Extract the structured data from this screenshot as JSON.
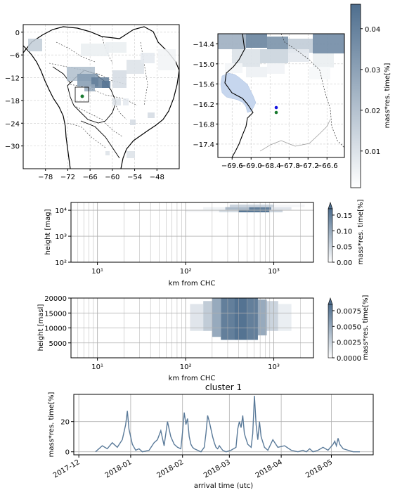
{
  "colors": {
    "primary": "#5a7a99",
    "grid": "#b0b0b0",
    "land_blue": "#c6d6ee",
    "dot_blue": "#1515e0",
    "dot_green": "#1a7a30"
  },
  "chart_data": [
    {
      "id": "map_overview",
      "type": "heatmap",
      "xticks": [
        "−78",
        "−72",
        "−66",
        "−60",
        "−54",
        "−48"
      ],
      "yticks": [
        "0",
        "−6",
        "−12",
        "−18",
        "−24",
        "−30"
      ],
      "xlim": [
        -84,
        -42
      ],
      "ylim": [
        -36,
        2
      ],
      "grid": true,
      "markers": [
        {
          "lon": -68.13,
          "lat": -16.35,
          "color": "green"
        }
      ]
    },
    {
      "id": "map_zoom",
      "type": "heatmap",
      "xticks": [
        "−69.6",
        "−69.0",
        "−68.4",
        "−67.8",
        "−67.2",
        "−66.6"
      ],
      "yticks": [
        "−14.4",
        "−15.0",
        "−15.6",
        "−16.2",
        "−16.8",
        "−17.4"
      ],
      "xlim": [
        -70.05,
        -66.05
      ],
      "ylim": [
        -17.8,
        -14.1
      ],
      "grid": true,
      "markers": [
        {
          "lon": -68.05,
          "lat": -16.3,
          "color": "blue"
        },
        {
          "lon": -68.05,
          "lat": -16.5,
          "color": "green"
        }
      ],
      "colorbar": {
        "label": "mass*res. time[%]",
        "ticks": [
          "0.01",
          "0.02",
          "0.03",
          "0.04"
        ],
        "range": [
          0.001,
          0.046
        ]
      }
    },
    {
      "id": "height_log",
      "type": "heatmap",
      "xlabel": "km from CHC",
      "ylabel": "height [mag]",
      "xticks": [
        "10¹",
        "10²",
        "10³"
      ],
      "yticks": [
        "10²",
        "10³",
        "10⁴"
      ],
      "xlim_log": [
        0.7,
        3.45
      ],
      "ylim_log": [
        2,
        4.3
      ],
      "cells": [
        {
          "x": [
            2.0,
            2.38
          ],
          "y": [
            3.92,
            4.02
          ],
          "v": 0.01
        },
        {
          "x": [
            2.38,
            2.6
          ],
          "y": [
            3.92,
            4.02
          ],
          "v": 0.04
        },
        {
          "x": [
            2.6,
            2.95
          ],
          "y": [
            3.92,
            4.02
          ],
          "v": 0.16
        },
        {
          "x": [
            2.95,
            3.1
          ],
          "y": [
            3.92,
            4.02
          ],
          "v": 0.05
        },
        {
          "x": [
            2.2,
            2.45
          ],
          "y": [
            4.02,
            4.12
          ],
          "v": 0.015
        },
        {
          "x": [
            2.45,
            2.72
          ],
          "y": [
            4.02,
            4.12
          ],
          "v": 0.08
        },
        {
          "x": [
            2.72,
            2.97
          ],
          "y": [
            4.02,
            4.12
          ],
          "v": 0.15
        },
        {
          "x": [
            2.97,
            3.2
          ],
          "y": [
            4.02,
            4.12
          ],
          "v": 0.03
        },
        {
          "x": [
            2.5,
            3.0
          ],
          "y": [
            4.12,
            4.22
          ],
          "v": 0.05
        },
        {
          "x": [
            3.0,
            3.35
          ],
          "y": [
            4.12,
            4.22
          ],
          "v": 0.01
        }
      ],
      "colorbar": {
        "label": "mass*res. time[%]",
        "ticks": [
          "0.00",
          "0.05",
          "0.10",
          "0.15"
        ],
        "range": [
          0,
          0.17
        ]
      }
    },
    {
      "id": "height_linear",
      "type": "heatmap",
      "xlabel": "km from CHC",
      "ylabel": "height [masl]",
      "xticks": [
        "10¹",
        "10²",
        "10³"
      ],
      "yticks": [
        "5000",
        "10000",
        "15000",
        "20000"
      ],
      "xlim_log": [
        0.7,
        3.45
      ],
      "ylim": [
        0,
        20000
      ],
      "cells": [
        {
          "x": [
            2.05,
            2.2
          ],
          "y": [
            9000,
            18000
          ],
          "v": 0.0015
        },
        {
          "x": [
            2.2,
            2.3
          ],
          "y": [
            9000,
            19000
          ],
          "v": 0.003
        },
        {
          "x": [
            2.3,
            2.4
          ],
          "y": [
            7000,
            20000
          ],
          "v": 0.005
        },
        {
          "x": [
            2.4,
            2.55
          ],
          "y": [
            6000,
            20000
          ],
          "v": 0.0075
        },
        {
          "x": [
            2.55,
            2.7
          ],
          "y": [
            6000,
            20000
          ],
          "v": 0.0082
        },
        {
          "x": [
            2.7,
            2.82
          ],
          "y": [
            6000,
            20000
          ],
          "v": 0.0075
        },
        {
          "x": [
            2.82,
            2.92
          ],
          "y": [
            7500,
            19500
          ],
          "v": 0.005
        },
        {
          "x": [
            2.92,
            3.05
          ],
          "y": [
            9000,
            19000
          ],
          "v": 0.0025
        },
        {
          "x": [
            3.05,
            3.2
          ],
          "y": [
            9000,
            18000
          ],
          "v": 0.001
        }
      ],
      "colorbar": {
        "label": "mass*res. time[%]",
        "ticks": [
          "0.0000",
          "0.0025",
          "0.0050",
          "0.0075"
        ],
        "range": [
          0,
          0.0085
        ]
      }
    },
    {
      "id": "timeseries",
      "type": "line",
      "title": "cluster 1",
      "xlabel": "arrival time (utc)",
      "ylabel": "mass*res. time[%]",
      "xticks": [
        "2017-12",
        "2018-01",
        "2018-02",
        "2018-03",
        "2018-04",
        "2018-05"
      ],
      "yticks": [
        "0",
        "20"
      ],
      "xlim": [
        -3,
        176
      ],
      "ylim": [
        -2,
        38
      ],
      "x_unit": "days after 2017-12-01",
      "x": [
        10,
        14,
        17,
        20,
        23,
        26,
        28,
        29,
        30,
        31,
        32,
        33,
        34,
        36,
        38,
        42,
        45,
        47,
        49,
        51,
        53,
        55,
        57,
        59,
        61,
        62,
        63,
        64,
        65,
        66,
        67,
        68,
        69,
        71,
        73,
        75,
        76,
        77,
        78,
        80,
        81,
        82,
        83,
        84,
        86,
        88,
        91,
        94,
        95,
        96,
        97,
        98,
        99,
        101,
        103,
        104,
        105,
        106,
        107,
        108,
        109,
        111,
        113,
        116,
        119,
        123,
        127,
        131,
        134,
        136,
        138,
        140,
        143,
        146,
        149,
        152,
        153,
        154,
        155,
        156,
        158,
        161,
        164,
        168
      ],
      "y": [
        0,
        4,
        2,
        6,
        3,
        8,
        18,
        27,
        15,
        10,
        5,
        3,
        1,
        2,
        0,
        1,
        6,
        8,
        14,
        4,
        20,
        10,
        5,
        3,
        2,
        13,
        26,
        18,
        22,
        10,
        5,
        3,
        2,
        1,
        0,
        3,
        12,
        24,
        20,
        10,
        6,
        3,
        2,
        4,
        1,
        0,
        1,
        3,
        15,
        20,
        16,
        24,
        12,
        5,
        3,
        12,
        37,
        18,
        8,
        20,
        10,
        3,
        1,
        8,
        3,
        4,
        1,
        0,
        1,
        0,
        2,
        0,
        1,
        3,
        1,
        5,
        7,
        4,
        9,
        5,
        2,
        1,
        0,
        0
      ]
    }
  ]
}
